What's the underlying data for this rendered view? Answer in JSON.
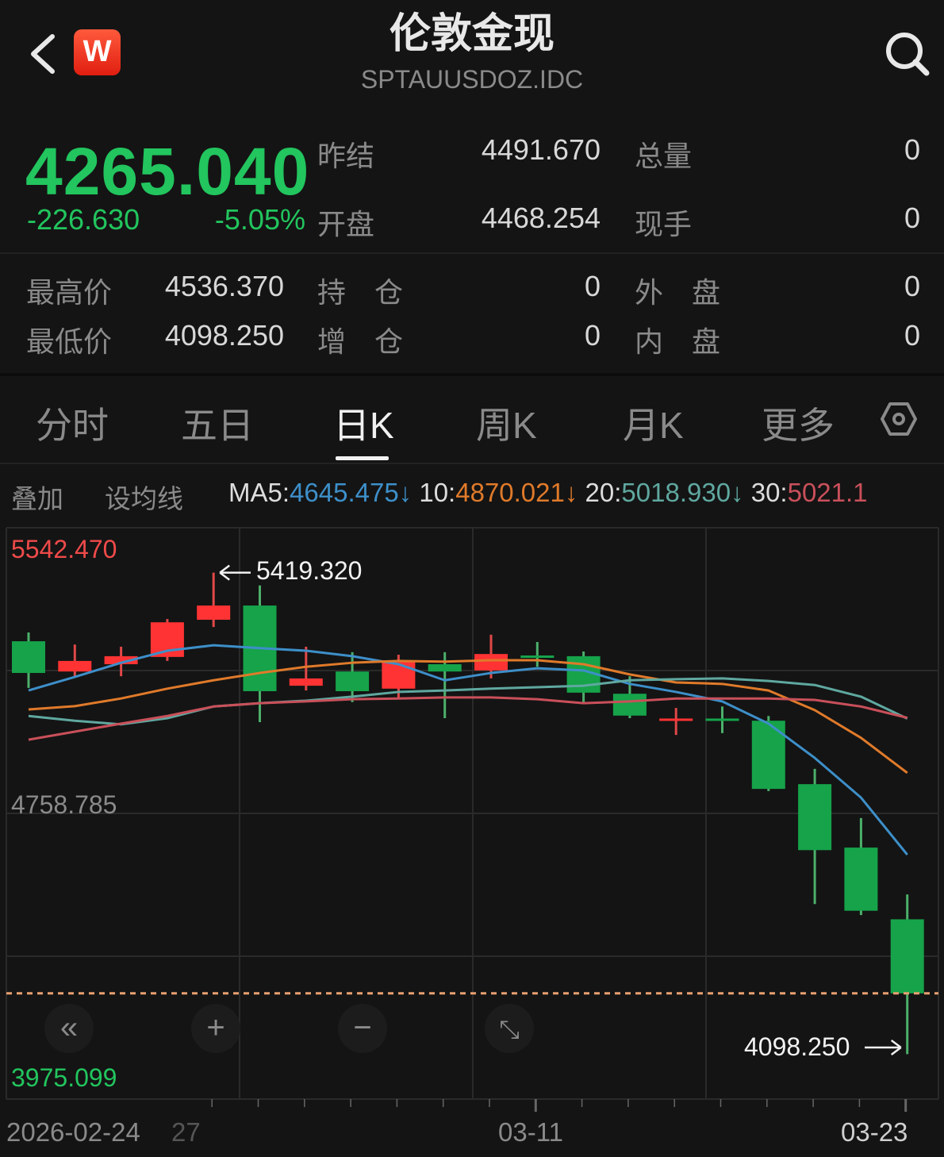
{
  "header": {
    "title": "伦敦金现",
    "code": "SPTAUUSDOZ.IDC",
    "logo_text": "W",
    "icons": {
      "back": "chevron-left-icon",
      "search": "search-icon"
    }
  },
  "quote": {
    "price": "4265.040",
    "change": "-226.630",
    "change_pct": "-5.05%",
    "stats": [
      {
        "label": "昨结",
        "value": "4491.670"
      },
      {
        "label": "开盘",
        "value": "4468.254"
      },
      {
        "label": "总量",
        "value": "0"
      },
      {
        "label": "现手",
        "value": "0"
      },
      {
        "label": "最高价",
        "value": "4536.370"
      },
      {
        "label": "最低价",
        "value": "4098.250"
      },
      {
        "label": "持　仓",
        "value": "0"
      },
      {
        "label": "增　仓",
        "value": "0"
      },
      {
        "label": "外　盘",
        "value": "0"
      },
      {
        "label": "内　盘",
        "value": "0"
      }
    ],
    "colors": {
      "down": "#22c55e",
      "up": "#ff3333"
    }
  },
  "tabs": [
    {
      "label": "分时"
    },
    {
      "label": "五日"
    },
    {
      "label": "日K",
      "active": true
    },
    {
      "label": "周K"
    },
    {
      "label": "月K"
    },
    {
      "label": "更多"
    }
  ],
  "ma_bar": {
    "overlay": "叠加",
    "set_ma": "设均线",
    "items": [
      {
        "label": "MA5:",
        "value": "4645.475",
        "arrow": "↓",
        "color": "#3d8fc9"
      },
      {
        "label": "10:",
        "value": "4870.021",
        "arrow": "↓",
        "color": "#e07a2a"
      },
      {
        "label": "20:",
        "value": "5018.930",
        "arrow": "↓",
        "color": "#5fa8a0"
      },
      {
        "label": "30:",
        "value": "5021.1",
        "arrow": "",
        "color": "#c9505a"
      }
    ]
  },
  "controls": {
    "rewind": "double-chevron-left-icon",
    "zoom_in": "plus-icon",
    "zoom_out": "minus-icon",
    "expand": "expand-icon"
  },
  "chart_data": {
    "type": "candlestick",
    "ylim": [
      3975.099,
      5542.47
    ],
    "y_labels": {
      "max": "5542.470",
      "mid": "4758.785",
      "min": "3975.099"
    },
    "annotations": {
      "high": "5419.320",
      "low": "4098.250"
    },
    "last_price_line": 4265.04,
    "x_labels": [
      {
        "index": 0,
        "text": "2026-02-24"
      },
      {
        "index": 3,
        "text": "27"
      },
      {
        "index": 11,
        "text": "03-11"
      },
      {
        "index": 19,
        "text": "03-23"
      }
    ],
    "grid": true,
    "candles": [
      {
        "o": 5231,
        "h": 5255,
        "l": 5103,
        "c": 5144
      },
      {
        "o": 5148,
        "h": 5222,
        "l": 5135,
        "c": 5177
      },
      {
        "o": 5168,
        "h": 5216,
        "l": 5135,
        "c": 5190
      },
      {
        "o": 5188,
        "h": 5292,
        "l": 5177,
        "c": 5283
      },
      {
        "o": 5290,
        "h": 5419.32,
        "l": 5270,
        "c": 5329
      },
      {
        "o": 5329,
        "h": 5384,
        "l": 5009,
        "c": 5094
      },
      {
        "o": 5109,
        "h": 5216,
        "l": 5096,
        "c": 5129
      },
      {
        "o": 5148,
        "h": 5201,
        "l": 5064,
        "c": 5094
      },
      {
        "o": 5101,
        "h": 5194,
        "l": 5074,
        "c": 5177
      },
      {
        "o": 5168,
        "h": 5201,
        "l": 5020,
        "c": 5148
      },
      {
        "o": 5151,
        "h": 5249,
        "l": 5129,
        "c": 5196
      },
      {
        "o": 5192,
        "h": 5229,
        "l": 5161,
        "c": 5190
      },
      {
        "o": 5190,
        "h": 5203,
        "l": 5064,
        "c": 5090
      },
      {
        "o": 5087,
        "h": 5135,
        "l": 5020,
        "c": 5027
      },
      {
        "o": 5016,
        "h": 5048,
        "l": 4974,
        "c": 5019
      },
      {
        "o": 5019,
        "h": 5052,
        "l": 4979,
        "c": 5016
      },
      {
        "o": 5013,
        "h": 5026,
        "l": 4820,
        "c": 4826
      },
      {
        "o": 4839,
        "h": 4881,
        "l": 4510,
        "c": 4658
      },
      {
        "o": 4665,
        "h": 4746,
        "l": 4480,
        "c": 4491.67
      },
      {
        "o": 4468.254,
        "h": 4536.37,
        "l": 4098.25,
        "c": 4265.04
      }
    ],
    "series": [
      {
        "name": "MA5",
        "color": "#3d8fc9",
        "values": [
          5096,
          5133,
          5172,
          5205,
          5220,
          5212,
          5205,
          5190,
          5168,
          5124,
          5144,
          5157,
          5151,
          5114,
          5092,
          5066,
          5005,
          4911,
          4802,
          4645.475
        ]
      },
      {
        "name": "10",
        "color": "#e07a2a",
        "values": [
          5044,
          5053,
          5074,
          5101,
          5124,
          5144,
          5161,
          5172,
          5177,
          5175,
          5179,
          5179,
          5168,
          5140,
          5118,
          5114,
          5096,
          5042,
          4966,
          4870.021
        ]
      },
      {
        "name": "20",
        "color": "#5fa8a0",
        "values": [
          5026,
          5013,
          5003,
          5020,
          5052,
          5061,
          5068,
          5079,
          5092,
          5096,
          5101,
          5105,
          5109,
          5124,
          5127,
          5129,
          5122,
          5111,
          5079,
          5018.93
        ]
      },
      {
        "name": "30",
        "color": "#c9505a",
        "values": [
          4961,
          4983,
          5005,
          5026,
          5052,
          5061,
          5066,
          5072,
          5074,
          5077,
          5077,
          5072,
          5061,
          5066,
          5074,
          5074,
          5074,
          5070,
          5052,
          5021.12
        ]
      }
    ]
  }
}
